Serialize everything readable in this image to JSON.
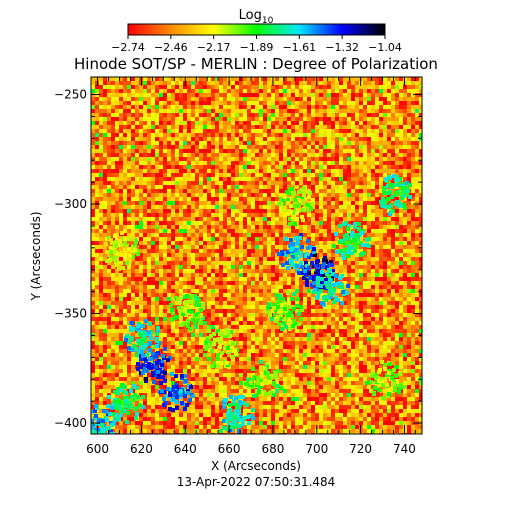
{
  "chart_data": {
    "type": "heatmap",
    "title": "Hinode SOT/SP - MERLIN : Degree of Polarization",
    "colorbar": {
      "label": "Log",
      "label_subscript": "10",
      "ticks": [
        "−2.74",
        "−2.46",
        "−2.17",
        "−1.89",
        "−1.61",
        "−1.32",
        "−1.04"
      ],
      "range": [
        -2.74,
        -1.04
      ],
      "colormap": [
        "#ff0000",
        "#ff8c00",
        "#ffff00",
        "#00ff00",
        "#00e5ff",
        "#0000ff",
        "#000000"
      ]
    },
    "xlabel": "X (Arcseconds)",
    "ylabel": "Y (Arcseconds)",
    "xlim": [
      597,
      748
    ],
    "ylim": [
      -405,
      -242
    ],
    "xticks": [
      600,
      620,
      640,
      660,
      680,
      700,
      720,
      740
    ],
    "yticks": [
      -250,
      -300,
      -350,
      -400
    ],
    "xtick_labels": [
      "600",
      "620",
      "640",
      "660",
      "680",
      "700",
      "720",
      "740"
    ],
    "ytick_labels": [
      "−250",
      "−300",
      "−350",
      "−400"
    ],
    "features": [
      {
        "x": 700,
        "y": -330,
        "level": -1.2
      },
      {
        "x": 690,
        "y": -322,
        "level": -1.5
      },
      {
        "x": 705,
        "y": -338,
        "level": -1.6
      },
      {
        "x": 715,
        "y": -316,
        "level": -1.7
      },
      {
        "x": 685,
        "y": -348,
        "level": -1.9
      },
      {
        "x": 625,
        "y": -372,
        "level": -1.3
      },
      {
        "x": 620,
        "y": -360,
        "level": -1.6
      },
      {
        "x": 635,
        "y": -385,
        "level": -1.4
      },
      {
        "x": 612,
        "y": -390,
        "level": -1.7
      },
      {
        "x": 600,
        "y": -400,
        "level": -1.5
      },
      {
        "x": 640,
        "y": -348,
        "level": -1.9
      },
      {
        "x": 662,
        "y": -395,
        "level": -1.6
      },
      {
        "x": 675,
        "y": -380,
        "level": -1.9
      },
      {
        "x": 735,
        "y": -295,
        "level": -1.7
      },
      {
        "x": 655,
        "y": -365,
        "level": -2.0
      },
      {
        "x": 690,
        "y": -300,
        "level": -2.0
      },
      {
        "x": 730,
        "y": -380,
        "level": -2.0
      },
      {
        "x": 610,
        "y": -320,
        "level": -2.1
      }
    ],
    "background_level": -2.45,
    "grid": false
  },
  "footer": {
    "timestamp": "13-Apr-2022 07:50:31.484"
  }
}
